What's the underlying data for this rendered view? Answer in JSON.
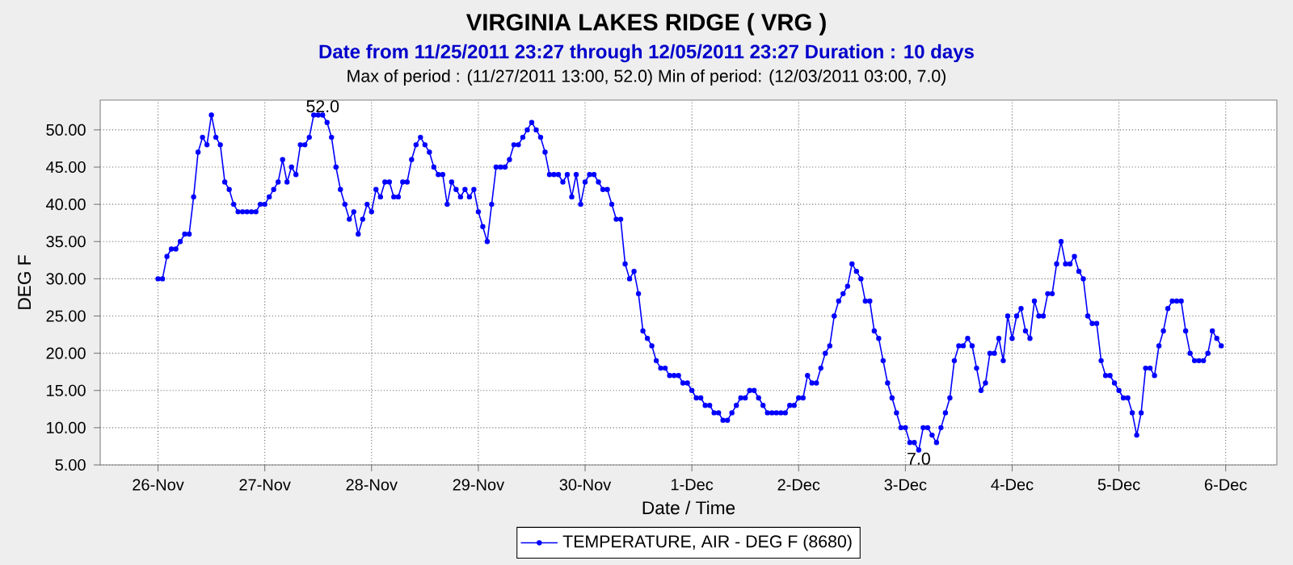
{
  "chart_data": {
    "type": "line",
    "title": "VIRGINIA LAKES RIDGE ( VRG )",
    "subtitle": "Date from 11/25/2011 23:27 through 12/05/2011 23:27 Duration : 10 days",
    "annotations": [
      "Max of period : (11/27/2011 13:00, 52.0)  Min of period: (12/03/2011 03:00,  7.0)",
      {
        "text": "52.0",
        "x": "2011-11-27T13:00",
        "y": 52
      },
      {
        "text": "7.0",
        "x": "2011-12-03T03:00",
        "y": 7
      }
    ],
    "xlabel": "Date / Time",
    "ylabel": "DEG F",
    "x": [
      "2011-11-26T00:00",
      "2011-11-26T01:00",
      "2011-11-26T02:00",
      "2011-11-26T03:00",
      "2011-11-26T04:00",
      "2011-11-26T05:00",
      "2011-11-26T06:00",
      "2011-11-26T07:00",
      "2011-11-26T08:00",
      "2011-11-26T09:00",
      "2011-11-26T10:00",
      "2011-11-26T11:00",
      "2011-11-26T12:00",
      "2011-11-26T13:00",
      "2011-11-26T14:00",
      "2011-11-26T15:00",
      "2011-11-26T16:00",
      "2011-11-26T17:00",
      "2011-11-26T18:00",
      "2011-11-26T19:00",
      "2011-11-26T20:00",
      "2011-11-26T21:00",
      "2011-11-26T22:00",
      "2011-11-26T23:00",
      "2011-11-27T00:00",
      "2011-11-27T01:00",
      "2011-11-27T02:00",
      "2011-11-27T03:00",
      "2011-11-27T04:00",
      "2011-11-27T05:00",
      "2011-11-27T06:00",
      "2011-11-27T07:00",
      "2011-11-27T08:00",
      "2011-11-27T09:00",
      "2011-11-27T10:00",
      "2011-11-27T11:00",
      "2011-11-27T12:00",
      "2011-11-27T13:00",
      "2011-11-27T14:00",
      "2011-11-27T15:00",
      "2011-11-27T16:00",
      "2011-11-27T17:00",
      "2011-11-27T18:00",
      "2011-11-27T19:00",
      "2011-11-27T20:00",
      "2011-11-27T21:00",
      "2011-11-27T22:00",
      "2011-11-27T23:00",
      "2011-11-28T00:00",
      "2011-11-28T01:00",
      "2011-11-28T02:00",
      "2011-11-28T03:00",
      "2011-11-28T04:00",
      "2011-11-28T05:00",
      "2011-11-28T06:00",
      "2011-11-28T07:00",
      "2011-11-28T08:00",
      "2011-11-28T09:00",
      "2011-11-28T10:00",
      "2011-11-28T11:00",
      "2011-11-28T12:00",
      "2011-11-28T13:00",
      "2011-11-28T14:00",
      "2011-11-28T15:00",
      "2011-11-28T16:00",
      "2011-11-28T17:00",
      "2011-11-28T18:00",
      "2011-11-28T19:00",
      "2011-11-28T20:00",
      "2011-11-28T21:00",
      "2011-11-28T22:00",
      "2011-11-28T23:00",
      "2011-11-29T00:00",
      "2011-11-29T01:00",
      "2011-11-29T02:00",
      "2011-11-29T03:00",
      "2011-11-29T04:00",
      "2011-11-29T05:00",
      "2011-11-29T06:00",
      "2011-11-29T07:00",
      "2011-11-29T08:00",
      "2011-11-29T09:00",
      "2011-11-29T10:00",
      "2011-11-29T11:00",
      "2011-11-29T12:00",
      "2011-11-29T13:00",
      "2011-11-29T14:00",
      "2011-11-29T15:00",
      "2011-11-29T16:00",
      "2011-11-29T17:00",
      "2011-11-29T18:00",
      "2011-11-29T19:00",
      "2011-11-29T20:00",
      "2011-11-29T21:00",
      "2011-11-29T22:00",
      "2011-11-29T23:00",
      "2011-11-30T00:00",
      "2011-11-30T01:00",
      "2011-11-30T02:00",
      "2011-11-30T03:00",
      "2011-11-30T04:00",
      "2011-11-30T05:00",
      "2011-11-30T06:00",
      "2011-11-30T07:00",
      "2011-11-30T08:00",
      "2011-11-30T09:00",
      "2011-11-30T10:00",
      "2011-11-30T11:00",
      "2011-11-30T12:00",
      "2011-11-30T13:00",
      "2011-11-30T14:00",
      "2011-11-30T15:00",
      "2011-11-30T16:00",
      "2011-11-30T17:00",
      "2011-11-30T18:00",
      "2011-11-30T19:00",
      "2011-11-30T20:00",
      "2011-11-30T21:00",
      "2011-11-30T22:00",
      "2011-11-30T23:00",
      "2011-12-01T00:00",
      "2011-12-01T01:00",
      "2011-12-01T02:00",
      "2011-12-01T03:00",
      "2011-12-01T04:00",
      "2011-12-01T05:00",
      "2011-12-01T06:00",
      "2011-12-01T07:00",
      "2011-12-01T08:00",
      "2011-12-01T09:00",
      "2011-12-01T10:00",
      "2011-12-01T11:00",
      "2011-12-01T12:00",
      "2011-12-01T13:00",
      "2011-12-01T14:00",
      "2011-12-01T15:00",
      "2011-12-01T16:00",
      "2011-12-01T17:00",
      "2011-12-01T18:00",
      "2011-12-01T19:00",
      "2011-12-01T20:00",
      "2011-12-01T21:00",
      "2011-12-01T22:00",
      "2011-12-01T23:00",
      "2011-12-02T00:00",
      "2011-12-02T01:00",
      "2011-12-02T02:00",
      "2011-12-02T03:00",
      "2011-12-02T04:00",
      "2011-12-02T05:00",
      "2011-12-02T06:00",
      "2011-12-02T07:00",
      "2011-12-02T08:00",
      "2011-12-02T09:00",
      "2011-12-02T10:00",
      "2011-12-02T11:00",
      "2011-12-02T12:00",
      "2011-12-02T13:00",
      "2011-12-02T14:00",
      "2011-12-02T15:00",
      "2011-12-02T16:00",
      "2011-12-02T17:00",
      "2011-12-02T18:00",
      "2011-12-02T19:00",
      "2011-12-02T20:00",
      "2011-12-02T21:00",
      "2011-12-02T22:00",
      "2011-12-02T23:00",
      "2011-12-03T00:00",
      "2011-12-03T01:00",
      "2011-12-03T02:00",
      "2011-12-03T03:00",
      "2011-12-03T04:00",
      "2011-12-03T05:00",
      "2011-12-03T06:00",
      "2011-12-03T07:00",
      "2011-12-03T08:00",
      "2011-12-03T09:00",
      "2011-12-03T10:00",
      "2011-12-03T11:00",
      "2011-12-03T12:00",
      "2011-12-03T13:00",
      "2011-12-03T14:00",
      "2011-12-03T15:00",
      "2011-12-03T16:00",
      "2011-12-03T17:00",
      "2011-12-03T18:00",
      "2011-12-03T19:00",
      "2011-12-03T20:00",
      "2011-12-03T21:00",
      "2011-12-03T22:00",
      "2011-12-03T23:00",
      "2011-12-04T00:00",
      "2011-12-04T01:00",
      "2011-12-04T02:00",
      "2011-12-04T03:00",
      "2011-12-04T04:00",
      "2011-12-04T05:00",
      "2011-12-04T06:00",
      "2011-12-04T07:00",
      "2011-12-04T08:00",
      "2011-12-04T09:00",
      "2011-12-04T10:00",
      "2011-12-04T11:00",
      "2011-12-04T12:00",
      "2011-12-04T13:00",
      "2011-12-04T14:00",
      "2011-12-04T15:00",
      "2011-12-04T16:00",
      "2011-12-04T17:00",
      "2011-12-04T18:00",
      "2011-12-04T19:00",
      "2011-12-04T20:00",
      "2011-12-04T21:00",
      "2011-12-04T22:00",
      "2011-12-04T23:00",
      "2011-12-05T00:00",
      "2011-12-05T01:00",
      "2011-12-05T02:00",
      "2011-12-05T03:00",
      "2011-12-05T04:00",
      "2011-12-05T05:00",
      "2011-12-05T06:00",
      "2011-12-05T07:00",
      "2011-12-05T08:00",
      "2011-12-05T09:00",
      "2011-12-05T10:00",
      "2011-12-05T11:00",
      "2011-12-05T12:00",
      "2011-12-05T13:00",
      "2011-12-05T14:00",
      "2011-12-05T15:00",
      "2011-12-05T16:00",
      "2011-12-05T17:00",
      "2011-12-05T18:00",
      "2011-12-05T19:00",
      "2011-12-05T20:00",
      "2011-12-05T21:00",
      "2011-12-05T22:00",
      "2011-12-05T23:00"
    ],
    "series": [
      {
        "name": "TEMPERATURE, AIR - DEG F (8680)",
        "color": "#0000ff",
        "values": [
          30,
          30,
          33,
          34,
          34,
          35,
          36,
          36,
          41,
          47,
          49,
          48,
          52,
          49,
          48,
          43,
          42,
          40,
          39,
          39,
          39,
          39,
          39,
          40,
          40,
          41,
          42,
          43,
          46,
          43,
          45,
          44,
          48,
          48,
          49,
          52,
          52,
          52,
          51,
          49,
          45,
          42,
          40,
          38,
          39,
          36,
          38,
          40,
          39,
          42,
          41,
          43,
          43,
          41,
          41,
          43,
          43,
          46,
          48,
          49,
          48,
          47,
          45,
          44,
          44,
          40,
          43,
          42,
          41,
          42,
          41,
          42,
          39,
          37,
          35,
          40,
          45,
          45,
          45,
          46,
          48,
          48,
          49,
          50,
          51,
          50,
          49,
          47,
          44,
          44,
          44,
          43,
          44,
          41,
          44,
          40,
          43,
          44,
          44,
          43,
          42,
          42,
          40,
          38,
          38,
          32,
          30,
          31,
          28,
          23,
          22,
          21,
          19,
          18,
          18,
          17,
          17,
          17,
          16,
          16,
          15,
          14,
          14,
          13,
          13,
          12,
          12,
          11,
          11,
          12,
          13,
          14,
          14,
          15,
          15,
          14,
          13,
          12,
          12,
          12,
          12,
          12,
          13,
          13,
          14,
          14,
          17,
          16,
          16,
          18,
          20,
          21,
          25,
          27,
          28,
          29,
          32,
          31,
          30,
          27,
          27,
          23,
          22,
          19,
          16,
          14,
          12,
          10,
          10,
          8,
          8,
          7,
          10,
          10,
          9,
          8,
          10,
          12,
          14,
          19,
          21,
          21,
          22,
          21,
          18,
          15,
          16,
          20,
          20,
          22,
          19,
          25,
          22,
          25,
          26,
          23,
          22,
          27,
          25,
          25,
          28,
          28,
          32,
          35,
          32,
          32,
          33,
          31,
          30,
          25,
          24,
          24,
          19,
          17,
          17,
          16,
          15,
          14,
          14,
          12,
          9,
          12,
          18,
          18,
          17,
          21,
          23,
          26,
          27,
          27,
          27,
          23,
          20,
          19,
          19,
          19,
          20,
          23,
          22,
          21
        ]
      }
    ],
    "xlim": [
      "2011-11-25T11:00",
      "2011-12-06T11:30"
    ],
    "xticks": [
      {
        "value": "2011-11-26",
        "label": "26-Nov"
      },
      {
        "value": "2011-11-27",
        "label": "27-Nov"
      },
      {
        "value": "2011-11-28",
        "label": "28-Nov"
      },
      {
        "value": "2011-11-29",
        "label": "29-Nov"
      },
      {
        "value": "2011-11-30",
        "label": "30-Nov"
      },
      {
        "value": "2011-12-01",
        "label": "1-Dec"
      },
      {
        "value": "2011-12-02",
        "label": "2-Dec"
      },
      {
        "value": "2011-12-03",
        "label": "3-Dec"
      },
      {
        "value": "2011-12-04",
        "label": "4-Dec"
      },
      {
        "value": "2011-12-05",
        "label": "5-Dec"
      },
      {
        "value": "2011-12-06",
        "label": "6-Dec"
      }
    ],
    "ylim": [
      5,
      54
    ],
    "yticks": [
      {
        "value": 5,
        "label": "5.00"
      },
      {
        "value": 10,
        "label": "10.00"
      },
      {
        "value": 15,
        "label": "15.00"
      },
      {
        "value": 20,
        "label": "20.00"
      },
      {
        "value": 25,
        "label": "25.00"
      },
      {
        "value": 30,
        "label": "30.00"
      },
      {
        "value": 35,
        "label": "35.00"
      },
      {
        "value": 40,
        "label": "40.00"
      },
      {
        "value": 45,
        "label": "45.00"
      },
      {
        "value": 50,
        "label": "50.00"
      }
    ],
    "grid": true,
    "legend": "bottom",
    "marker": "circle"
  }
}
